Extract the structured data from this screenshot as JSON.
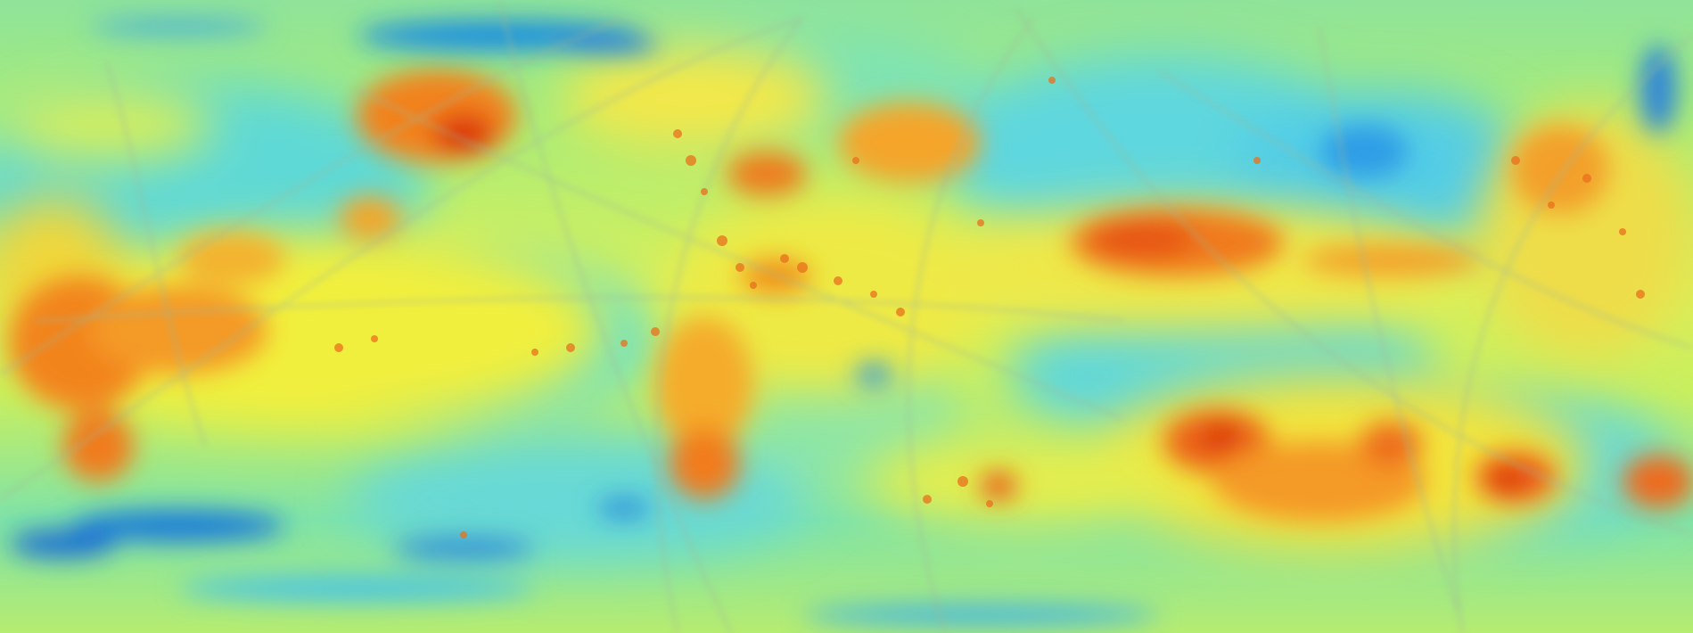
{
  "map": {
    "projection": "equirectangular",
    "colormap": "jet",
    "colormap_stops": [
      "#0a3fc8",
      "#1f8fe6",
      "#3fd6ec",
      "#7fe7a4",
      "#c8ef5a",
      "#f6ee3a",
      "#f7b22c",
      "#f06a1c",
      "#d8280e"
    ],
    "base_color": "#8fe890",
    "ocean_tone": "#5ed6d9",
    "grid_track_color": "#9ab8a0",
    "legend": null,
    "title": null
  }
}
